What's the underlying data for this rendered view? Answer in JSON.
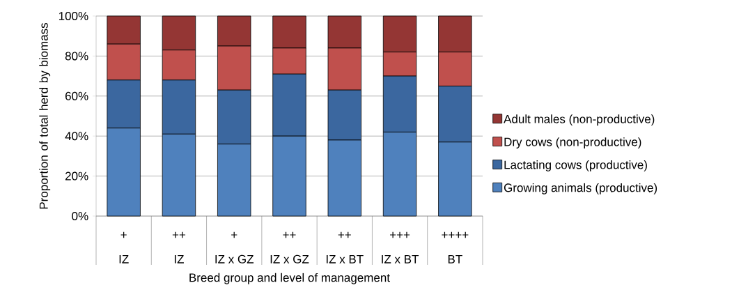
{
  "chart_data": {
    "type": "bar",
    "stacked": true,
    "xlabel": "Breed group and level of management",
    "ylabel": "Proportion of total herd by biomass",
    "categories": [
      "+\nIZ",
      "++\nIZ",
      "+\nIZ x GZ",
      "++\nIZ x GZ",
      "++\nIZ x BT",
      "+++\nIZ x BT",
      "++++\nBT"
    ],
    "series": [
      {
        "name": "Growing animals (productive)",
        "color": "#4f81bd",
        "values": [
          44,
          41,
          36,
          40,
          38,
          42,
          37
        ]
      },
      {
        "name": "Lactating cows (productive)",
        "color": "#3b679f",
        "values": [
          24,
          27,
          27,
          31,
          25,
          28,
          28
        ]
      },
      {
        "name": "Dry cows (non-productive)",
        "color": "#c0504d",
        "values": [
          18,
          15,
          22,
          13,
          21,
          12,
          17
        ]
      },
      {
        "name": "Adult males (non-productive)",
        "color": "#943634",
        "values": [
          14,
          17,
          15,
          16,
          16,
          18,
          18
        ]
      }
    ],
    "ylim": [
      0,
      100
    ],
    "yticks": [
      {
        "value": 0,
        "label": "0%"
      },
      {
        "value": 20,
        "label": "20%"
      },
      {
        "value": 40,
        "label": "40%"
      },
      {
        "value": 60,
        "label": "60%"
      },
      {
        "value": 80,
        "label": "80%"
      },
      {
        "value": 100,
        "label": "100%"
      }
    ],
    "grid": "y",
    "legend": "right"
  }
}
